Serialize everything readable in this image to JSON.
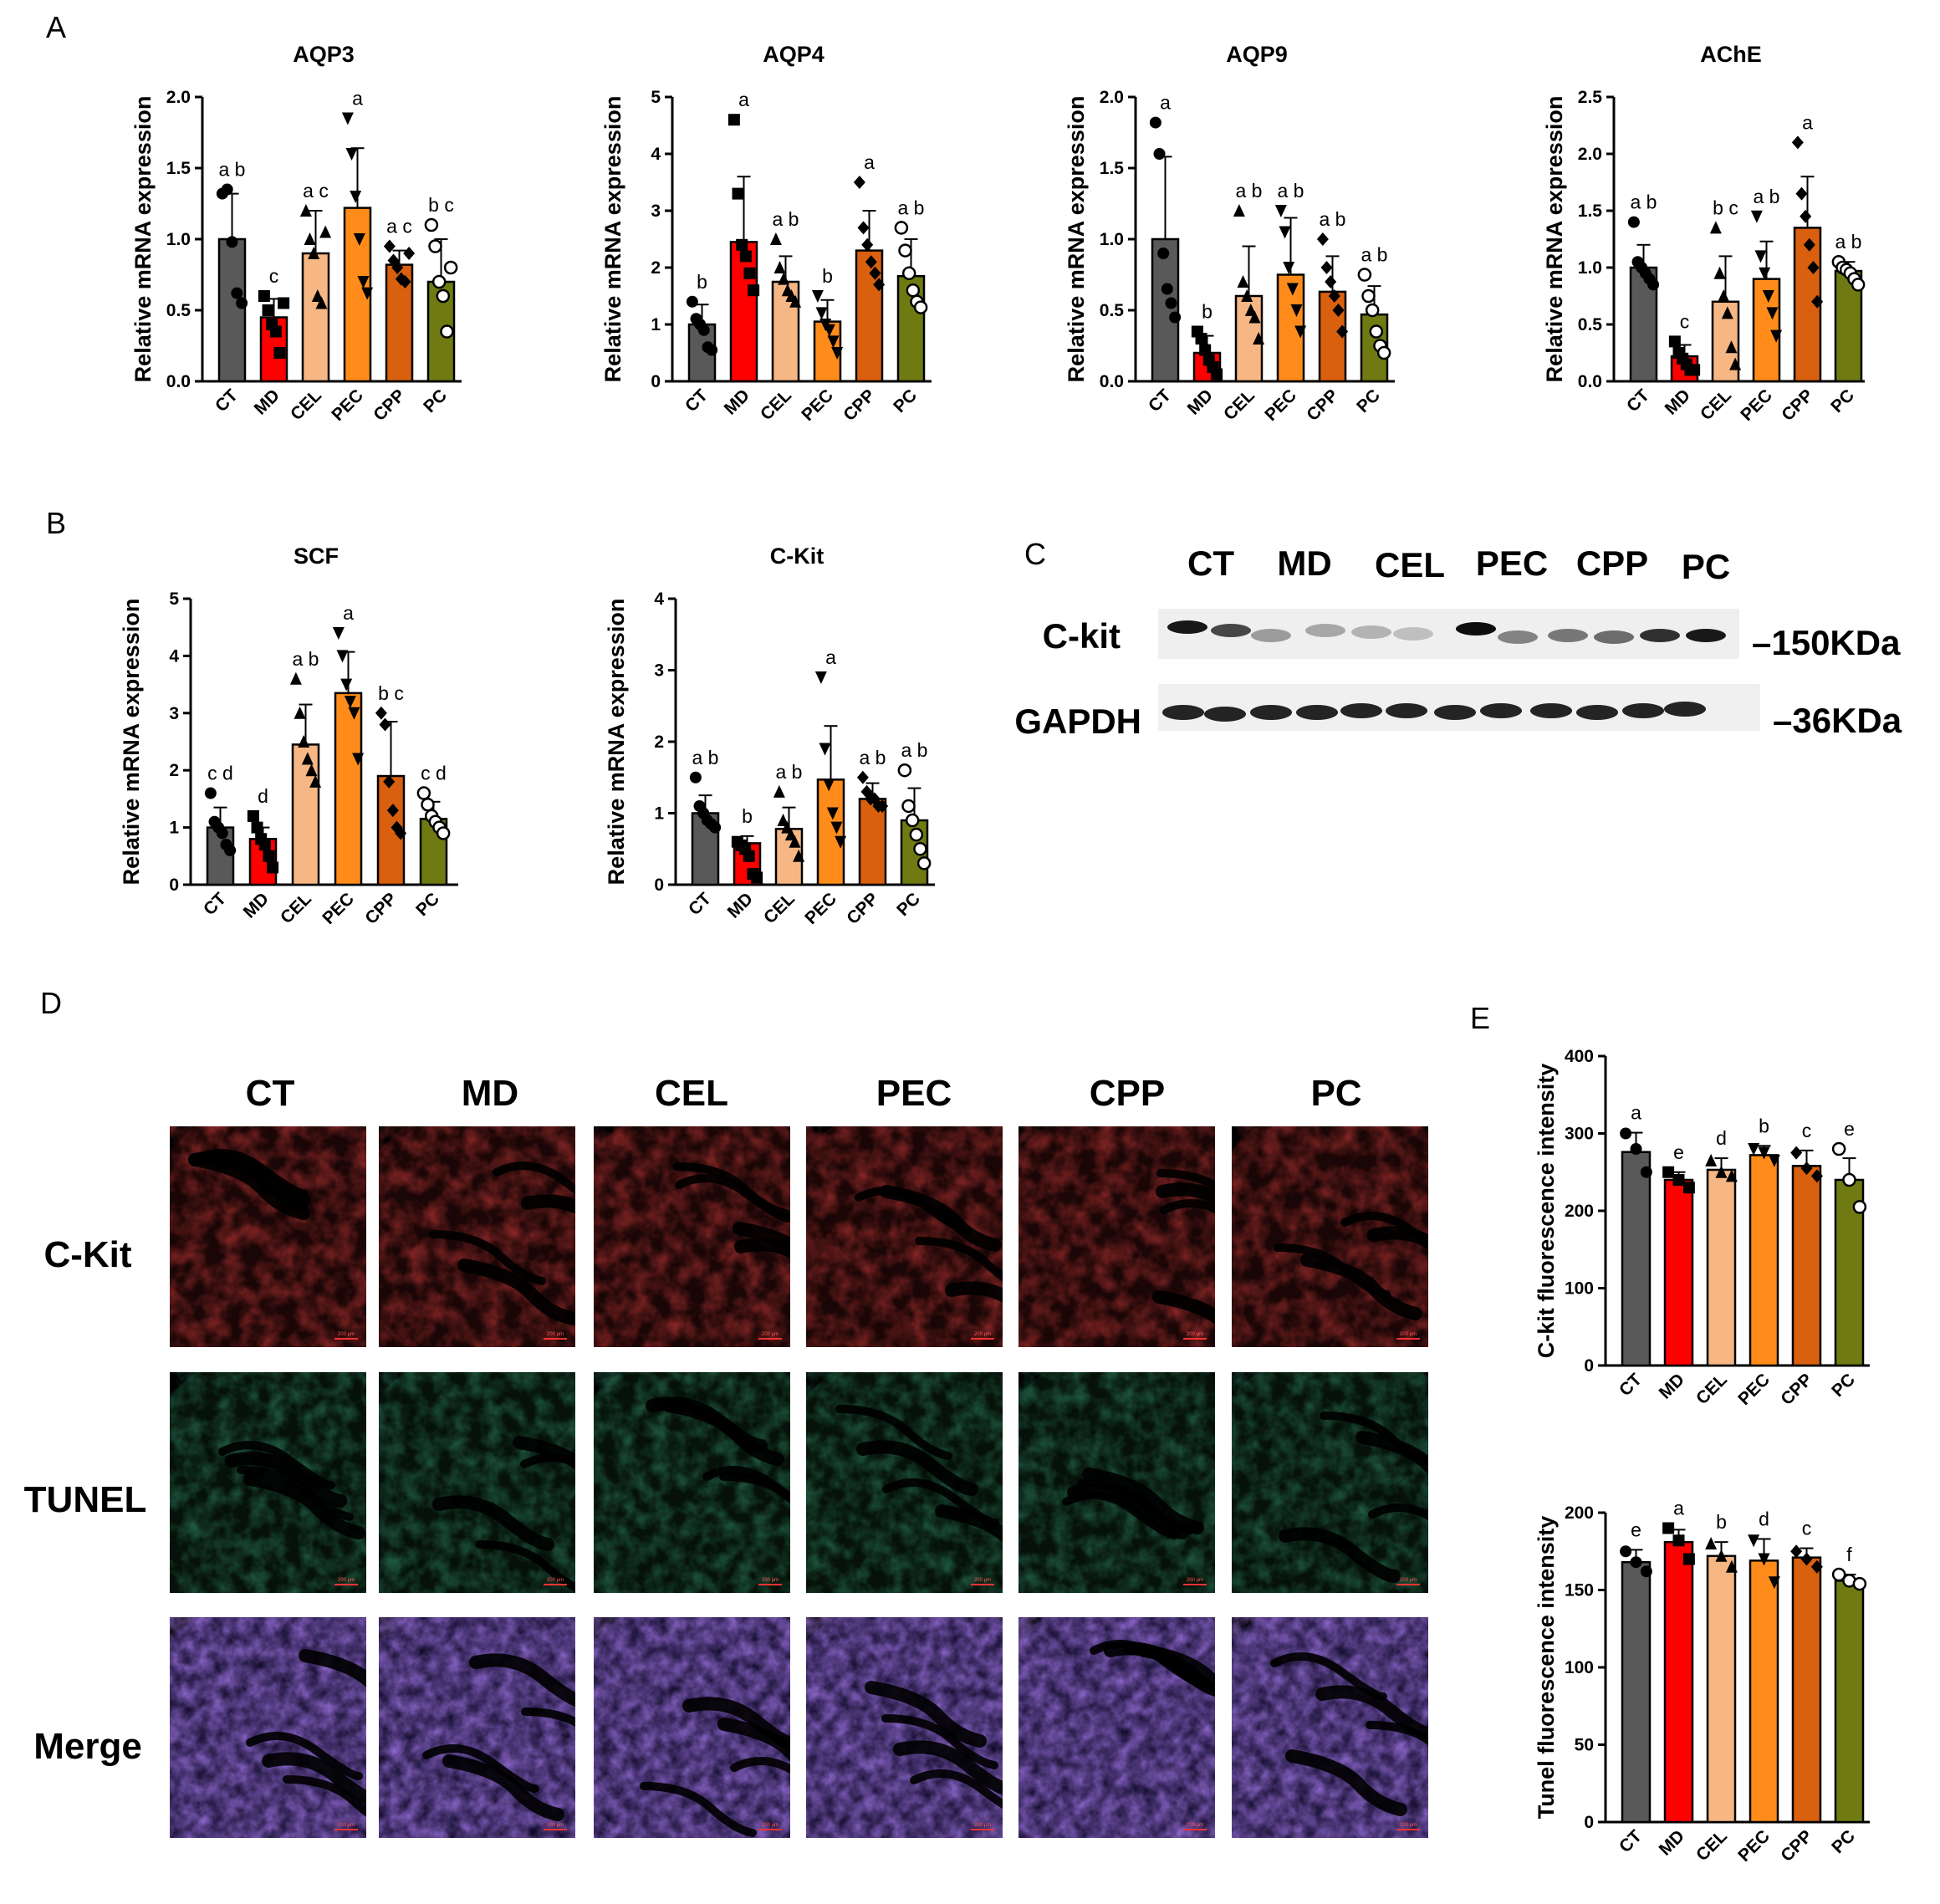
{
  "panels": {
    "a": "A",
    "b": "B",
    "c": "C",
    "d": "D",
    "e": "E"
  },
  "colors": {
    "CT": "#595959",
    "MD": "#ff0000",
    "CEL": "#f6b784",
    "PEC": "#ff8c1a",
    "CPP": "#d9600f",
    "PC": "#6f7a12"
  },
  "chart_data": [
    {
      "type": "bar",
      "title": "AQP3",
      "ylabel": "Relative mRNA expression",
      "categories": [
        "CT",
        "MD",
        "CEL",
        "PEC",
        "CPP",
        "PC"
      ],
      "ylim": [
        0,
        2.0
      ],
      "yticks": [
        "0.0",
        "0.5",
        "1.0",
        "1.5",
        "2.0"
      ],
      "values": [
        1.0,
        0.45,
        0.9,
        1.22,
        0.82,
        0.7
      ],
      "errors": [
        0.32,
        0.13,
        0.3,
        0.42,
        0.1,
        0.3
      ],
      "labels": [
        "a b",
        "c",
        "a c",
        "a",
        "a c",
        "b c"
      ],
      "points": [
        [
          1.32,
          1.35,
          0.98,
          0.62,
          0.55
        ],
        [
          0.6,
          0.5,
          0.4,
          0.35,
          0.2,
          0.55
        ],
        [
          1.2,
          1.0,
          0.9,
          0.6,
          0.55,
          1.05
        ],
        [
          1.85,
          1.6,
          1.3,
          1.0,
          0.7,
          0.62
        ],
        [
          0.95,
          0.85,
          0.8,
          0.72,
          0.7,
          0.9
        ],
        [
          1.1,
          0.95,
          0.7,
          0.6,
          0.35,
          0.8
        ]
      ],
      "markers": [
        "circle",
        "square",
        "triangle",
        "triangle-down",
        "diamond",
        "circle-open"
      ]
    },
    {
      "type": "bar",
      "title": "AQP4",
      "ylabel": "Relative mRNA expression",
      "categories": [
        "CT",
        "MD",
        "CEL",
        "PEC",
        "CPP",
        "PC"
      ],
      "ylim": [
        0,
        5
      ],
      "yticks": [
        "0",
        "1",
        "2",
        "3",
        "4",
        "5"
      ],
      "values": [
        1.0,
        2.45,
        1.75,
        1.05,
        2.3,
        1.85
      ],
      "errors": [
        0.35,
        1.15,
        0.45,
        0.38,
        0.7,
        0.65
      ],
      "labels": [
        "b",
        "a",
        "a b",
        "b",
        "a",
        "a b"
      ],
      "points": [
        [
          1.4,
          1.1,
          1.0,
          0.9,
          0.6,
          0.55
        ],
        [
          4.6,
          3.3,
          2.4,
          2.2,
          1.9,
          1.6
        ],
        [
          2.5,
          2.0,
          1.8,
          1.6,
          1.5,
          1.4
        ],
        [
          1.5,
          1.2,
          1.0,
          0.9,
          0.7,
          0.5
        ],
        [
          3.5,
          2.7,
          2.4,
          2.1,
          1.9,
          1.7
        ],
        [
          2.7,
          2.3,
          1.9,
          1.6,
          1.4,
          1.3
        ]
      ],
      "markers": [
        "circle",
        "square",
        "triangle",
        "triangle-down",
        "diamond",
        "circle-open"
      ]
    },
    {
      "type": "bar",
      "title": "AQP9",
      "ylabel": "Relative mRNA expression",
      "categories": [
        "CT",
        "MD",
        "CEL",
        "PEC",
        "CPP",
        "PC"
      ],
      "ylim": [
        0,
        2.0
      ],
      "yticks": [
        "0.0",
        "0.5",
        "1.0",
        "1.5",
        "2.0"
      ],
      "values": [
        1.0,
        0.2,
        0.6,
        0.75,
        0.63,
        0.47
      ],
      "errors": [
        0.58,
        0.12,
        0.35,
        0.4,
        0.25,
        0.2
      ],
      "labels": [
        "a",
        "b",
        "a b",
        "a b",
        "a b",
        "a b"
      ],
      "points": [
        [
          1.82,
          1.6,
          0.9,
          0.65,
          0.55,
          0.45
        ],
        [
          0.35,
          0.3,
          0.22,
          0.15,
          0.1,
          0.05
        ],
        [
          1.2,
          0.7,
          0.6,
          0.5,
          0.45,
          0.3
        ],
        [
          1.2,
          1.05,
          0.8,
          0.65,
          0.5,
          0.35
        ],
        [
          1.0,
          0.8,
          0.7,
          0.6,
          0.5,
          0.35
        ],
        [
          0.75,
          0.6,
          0.5,
          0.35,
          0.25,
          0.2
        ]
      ],
      "markers": [
        "circle",
        "square",
        "triangle",
        "triangle-down",
        "diamond",
        "circle-open"
      ]
    },
    {
      "type": "bar",
      "title": "AChE",
      "ylabel": "Relative mRNA expression",
      "categories": [
        "CT",
        "MD",
        "CEL",
        "PEC",
        "CPP",
        "PC"
      ],
      "ylim": [
        0,
        2.5
      ],
      "yticks": [
        "0.0",
        "0.5",
        "1.0",
        "1.5",
        "2.0",
        "2.5"
      ],
      "values": [
        1.0,
        0.22,
        0.7,
        0.9,
        1.35,
        0.97
      ],
      "errors": [
        0.2,
        0.1,
        0.4,
        0.33,
        0.45,
        0.08
      ],
      "labels": [
        "a b",
        "c",
        "b c",
        "a b",
        "a",
        "a b"
      ],
      "points": [
        [
          1.4,
          1.05,
          1.0,
          0.95,
          0.9,
          0.85
        ],
        [
          0.35,
          0.25,
          0.2,
          0.15,
          0.1,
          0.1
        ],
        [
          1.35,
          0.95,
          0.75,
          0.6,
          0.3,
          0.15
        ],
        [
          1.45,
          1.1,
          0.95,
          0.75,
          0.6,
          0.4
        ],
        [
          2.1,
          1.65,
          1.45,
          1.2,
          1.0,
          0.7
        ],
        [
          1.05,
          1.0,
          0.98,
          0.95,
          0.9,
          0.85
        ]
      ],
      "markers": [
        "circle",
        "square",
        "triangle",
        "triangle-down",
        "diamond",
        "circle-open"
      ]
    },
    {
      "type": "bar",
      "title": "SCF",
      "ylabel": "Relative mRNA expression",
      "categories": [
        "CT",
        "MD",
        "CEL",
        "PEC",
        "CPP",
        "PC"
      ],
      "ylim": [
        0,
        5
      ],
      "yticks": [
        "0",
        "1",
        "2",
        "3",
        "4",
        "5"
      ],
      "values": [
        1.0,
        0.8,
        2.45,
        3.35,
        1.9,
        1.15
      ],
      "errors": [
        0.35,
        0.2,
        0.7,
        0.72,
        0.95,
        0.3
      ],
      "labels": [
        "c d",
        "d",
        "a b",
        "a",
        "b c",
        "c d"
      ],
      "points": [
        [
          1.6,
          1.1,
          1.0,
          0.9,
          0.7,
          0.6
        ],
        [
          1.2,
          1.0,
          0.8,
          0.7,
          0.5,
          0.3
        ],
        [
          3.6,
          3.0,
          2.5,
          2.2,
          2.0,
          1.8
        ],
        [
          4.4,
          4.0,
          3.5,
          3.2,
          3.0,
          2.2
        ],
        [
          3.0,
          2.8,
          1.8,
          1.3,
          1.0,
          0.9
        ],
        [
          1.6,
          1.4,
          1.2,
          1.1,
          1.0,
          0.9
        ]
      ],
      "markers": [
        "circle",
        "square",
        "triangle",
        "triangle-down",
        "diamond",
        "circle-open"
      ]
    },
    {
      "type": "bar",
      "title": "C-Kit",
      "ylabel": "Relative mRNA expression",
      "categories": [
        "CT",
        "MD",
        "CEL",
        "PEC",
        "CPP",
        "PC"
      ],
      "ylim": [
        0,
        4
      ],
      "yticks": [
        "0",
        "1",
        "2",
        "3",
        "4"
      ],
      "values": [
        1.0,
        0.58,
        0.78,
        1.47,
        1.2,
        0.9
      ],
      "errors": [
        0.25,
        0.1,
        0.3,
        0.75,
        0.22,
        0.45
      ],
      "labels": [
        "a b",
        "b",
        "a b",
        "a",
        "a b",
        "a b"
      ],
      "points": [
        [
          1.5,
          1.1,
          1.0,
          0.9,
          0.85,
          0.8
        ],
        [
          0.6,
          0.55,
          0.5,
          0.4,
          0.15,
          0.1
        ],
        [
          1.3,
          0.9,
          0.8,
          0.7,
          0.6,
          0.4
        ],
        [
          2.9,
          1.9,
          1.4,
          1.0,
          0.8,
          0.6
        ],
        [
          1.5,
          1.3,
          1.2,
          1.2,
          1.1,
          1.1
        ],
        [
          1.6,
          1.1,
          0.9,
          0.7,
          0.5,
          0.3
        ]
      ],
      "markers": [
        "circle",
        "square",
        "triangle",
        "triangle-down",
        "diamond",
        "circle-open"
      ]
    },
    {
      "type": "bar",
      "title": "",
      "ylabel": "C-kit fluorescence intensity",
      "categories": [
        "CT",
        "MD",
        "CEL",
        "PEC",
        "CPP",
        "PC"
      ],
      "ylim": [
        0,
        400
      ],
      "yticks": [
        "0",
        "100",
        "200",
        "300",
        "400"
      ],
      "values": [
        276,
        240,
        253,
        272,
        258,
        240
      ],
      "errors": [
        25,
        10,
        15,
        12,
        20,
        28
      ],
      "labels": [
        "a",
        "e",
        "d",
        "b",
        "c",
        "e"
      ],
      "points": [
        [
          300,
          280,
          250
        ],
        [
          250,
          240,
          230
        ],
        [
          265,
          250,
          245
        ],
        [
          280,
          275,
          265
        ],
        [
          275,
          255,
          245
        ],
        [
          280,
          240,
          205
        ]
      ],
      "markers": [
        "circle",
        "square",
        "triangle",
        "triangle-down",
        "diamond",
        "circle-open"
      ]
    },
    {
      "type": "bar",
      "title": "",
      "ylabel": "Tunel fluorescence intensity",
      "categories": [
        "CT",
        "MD",
        "CEL",
        "PEC",
        "CPP",
        "PC"
      ],
      "ylim": [
        0,
        200
      ],
      "yticks": [
        "0",
        "50",
        "100",
        "150",
        "200"
      ],
      "values": [
        168,
        181,
        172,
        169,
        171,
        156
      ],
      "errors": [
        8,
        8,
        9,
        14,
        6,
        4
      ],
      "labels": [
        "e",
        "a",
        "b",
        "d",
        "c",
        "f"
      ],
      "points": [
        [
          175,
          168,
          162
        ],
        [
          190,
          182,
          170
        ],
        [
          180,
          172,
          165
        ],
        [
          182,
          170,
          155
        ],
        [
          175,
          170,
          165
        ],
        [
          160,
          156,
          154
        ]
      ],
      "markers": [
        "circle",
        "square",
        "triangle",
        "triangle-down",
        "diamond",
        "circle-open"
      ]
    }
  ],
  "western": {
    "groups": [
      "CT",
      "MD",
      "CEL",
      "PEC",
      "CPP",
      "PC"
    ],
    "rows": [
      "C-kit",
      "GAPDH"
    ],
    "sizes": [
      "–150KDa",
      "–36KDa"
    ]
  },
  "micrographs": {
    "columns": [
      "CT",
      "MD",
      "CEL",
      "PEC",
      "CPP",
      "PC"
    ],
    "rows": [
      "C-Kit",
      "TUNEL",
      "Merge"
    ],
    "scale": "200 μm"
  }
}
